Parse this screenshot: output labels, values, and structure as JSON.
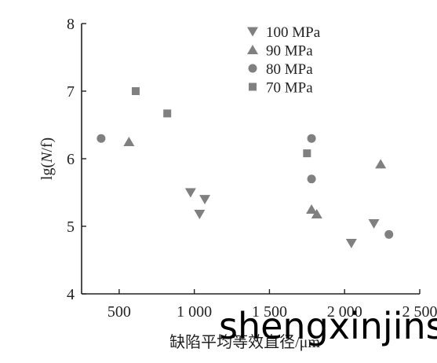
{
  "chart_data": {
    "type": "scatter",
    "title": "",
    "xlabel": "缺陷平均等效直径/μm",
    "ylabel_prefix": "lg(",
    "ylabel_var": "N",
    "ylabel_suffix": "/f)",
    "xlim": [
      250,
      2500
    ],
    "ylim": [
      4,
      8
    ],
    "x_ticks": [
      500,
      1000,
      1500,
      2000,
      2500
    ],
    "x_tick_labels": [
      "500",
      "1 000",
      "1 500",
      "2 000",
      "2 500"
    ],
    "y_ticks": [
      4,
      5,
      6,
      7,
      8
    ],
    "y_tick_labels": [
      "4",
      "5",
      "6",
      "7",
      "8"
    ],
    "grid": false,
    "legend_position": "top-right",
    "marker_color": "#808080",
    "axis_color": "#222222",
    "series": [
      {
        "name": "100 MPa",
        "marker": "triangle-down",
        "points": [
          [
            975,
            5.5
          ],
          [
            1035,
            5.18
          ],
          [
            1070,
            5.4
          ],
          [
            2045,
            4.75
          ],
          [
            2195,
            5.04
          ]
        ]
      },
      {
        "name": "90 MPa",
        "marker": "triangle-up",
        "points": [
          [
            565,
            6.25
          ],
          [
            1780,
            5.25
          ],
          [
            1815,
            5.18
          ],
          [
            2240,
            5.92
          ]
        ]
      },
      {
        "name": "80 MPa",
        "marker": "circle",
        "points": [
          [
            380,
            6.3
          ],
          [
            1780,
            6.3
          ],
          [
            1780,
            5.7
          ],
          [
            2295,
            4.88
          ]
        ]
      },
      {
        "name": "70 MPa",
        "marker": "square",
        "points": [
          [
            610,
            7.0
          ],
          [
            820,
            6.67
          ],
          [
            1750,
            6.08
          ]
        ]
      }
    ]
  },
  "watermark": "shengxinjins"
}
